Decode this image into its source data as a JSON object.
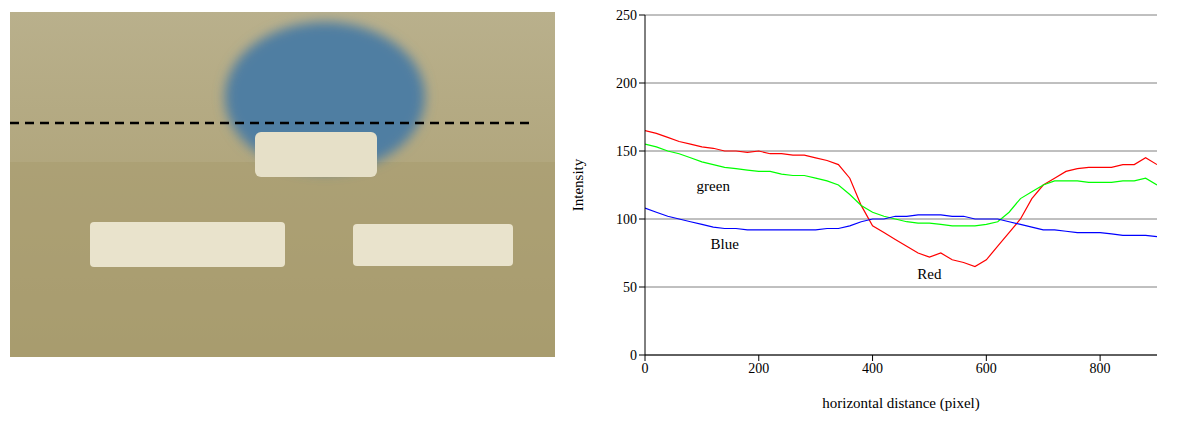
{
  "chart_data": {
    "type": "line",
    "x_label": "horizontal distance (pixel)",
    "y_label": "Intensity",
    "x": [
      0,
      20,
      40,
      60,
      80,
      100,
      120,
      140,
      160,
      180,
      200,
      220,
      240,
      260,
      280,
      300,
      320,
      340,
      360,
      380,
      400,
      420,
      440,
      460,
      480,
      500,
      520,
      540,
      560,
      580,
      600,
      620,
      640,
      660,
      680,
      700,
      720,
      740,
      760,
      780,
      800,
      820,
      840,
      860,
      880,
      900
    ],
    "series": [
      {
        "name": "Red",
        "color": "#ff0000",
        "values": [
          165,
          163,
          160,
          157,
          155,
          153,
          152,
          150,
          150,
          149,
          150,
          148,
          148,
          147,
          147,
          145,
          143,
          140,
          130,
          110,
          95,
          90,
          85,
          80,
          75,
          72,
          75,
          70,
          68,
          65,
          70,
          80,
          90,
          100,
          115,
          125,
          130,
          135,
          137,
          138,
          138,
          138,
          140,
          140,
          145,
          140
        ]
      },
      {
        "name": "green",
        "color": "#00ff00",
        "values": [
          155,
          153,
          150,
          148,
          145,
          142,
          140,
          138,
          137,
          136,
          135,
          135,
          133,
          132,
          132,
          130,
          128,
          125,
          118,
          110,
          105,
          102,
          100,
          98,
          97,
          97,
          96,
          95,
          95,
          95,
          96,
          98,
          105,
          115,
          120,
          125,
          128,
          128,
          128,
          127,
          127,
          127,
          128,
          128,
          130,
          125
        ]
      },
      {
        "name": "Blue",
        "color": "#0000ff",
        "values": [
          108,
          105,
          102,
          100,
          98,
          96,
          94,
          93,
          93,
          92,
          92,
          92,
          92,
          92,
          92,
          92,
          93,
          93,
          95,
          98,
          100,
          100,
          102,
          102,
          103,
          103,
          103,
          102,
          102,
          100,
          100,
          100,
          98,
          96,
          94,
          92,
          92,
          91,
          90,
          90,
          90,
          89,
          88,
          88,
          88,
          87
        ]
      }
    ],
    "xlim": [
      0,
      900
    ],
    "xticks": [
      0,
      200,
      400,
      600,
      800
    ],
    "ylim": [
      0,
      250
    ],
    "yticks": [
      0,
      50,
      100,
      150,
      200,
      250
    ],
    "grid": true
  }
}
